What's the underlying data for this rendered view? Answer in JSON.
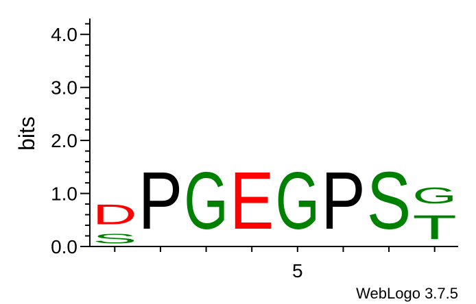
{
  "chart_data": {
    "type": "sequence-logo",
    "ylabel": "bits",
    "ylim": [
      0,
      4.3
    ],
    "y_ticks": [
      "0.0",
      "1.0",
      "2.0",
      "3.0",
      "4.0"
    ],
    "x_ticks": [
      "5"
    ],
    "x_tick_position": 5,
    "footer": "WebLogo 3.7.5",
    "colors": {
      "red": "#ff0000",
      "black": "#000000",
      "green": "#008000"
    },
    "positions": [
      {
        "position": 1,
        "letters": [
          {
            "char": "S",
            "height": 0.3,
            "color": "#008000"
          },
          {
            "char": "D",
            "height": 0.6,
            "color": "#ff0000"
          }
        ]
      },
      {
        "position": 2,
        "letters": [
          {
            "char": "P",
            "height": 1.72,
            "color": "#000000"
          }
        ]
      },
      {
        "position": 3,
        "letters": [
          {
            "char": "G",
            "height": 1.72,
            "color": "#008000"
          }
        ]
      },
      {
        "position": 4,
        "letters": [
          {
            "char": "E",
            "height": 1.72,
            "color": "#ff0000"
          }
        ]
      },
      {
        "position": 5,
        "letters": [
          {
            "char": "G",
            "height": 1.72,
            "color": "#008000"
          }
        ]
      },
      {
        "position": 6,
        "letters": [
          {
            "char": "P",
            "height": 1.72,
            "color": "#000000"
          }
        ]
      },
      {
        "position": 7,
        "letters": [
          {
            "char": "S",
            "height": 1.72,
            "color": "#008000"
          }
        ]
      },
      {
        "position": 8,
        "letters": [
          {
            "char": "T",
            "height": 0.72,
            "color": "#008000"
          },
          {
            "char": "G",
            "height": 0.48,
            "color": "#008000"
          }
        ]
      }
    ]
  }
}
